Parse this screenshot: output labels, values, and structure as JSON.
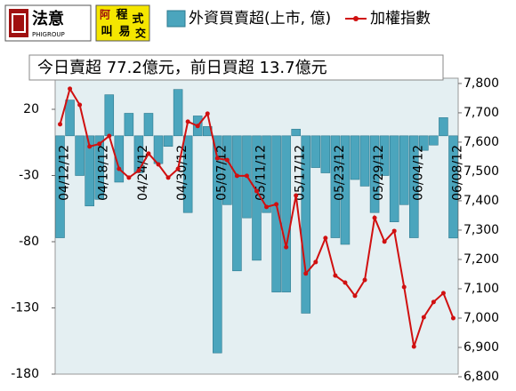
{
  "logos": {
    "brand": "法意",
    "brand_sub": "PHIGROUP",
    "second": [
      "阿",
      "程",
      "式",
      "叫",
      "易",
      "交"
    ]
  },
  "chart_data": {
    "type": "bar_line",
    "subtitle": "今日賣超 77.2億元，前日買超 13.7億元",
    "categories": [
      "04/12/12",
      null,
      null,
      null,
      "04/18/12",
      null,
      null,
      null,
      "04/24/12",
      null,
      null,
      null,
      "04/30/12",
      null,
      null,
      null,
      "05/07/12",
      null,
      null,
      null,
      "05/11/12",
      null,
      null,
      null,
      "05/17/12",
      null,
      null,
      null,
      "05/23/12",
      null,
      null,
      null,
      "05/29/12",
      null,
      null,
      null,
      "06/04/12",
      null,
      null,
      null,
      "06/08/12"
    ],
    "series": [
      {
        "name": "外資買賣超(上市, 億)",
        "type": "bar",
        "color": "#4ba5bd",
        "values": [
          -77,
          27,
          -30,
          -53,
          -48,
          31,
          -35,
          17,
          -28,
          17,
          -21,
          -8,
          35,
          -58,
          15,
          7,
          -164,
          -52,
          -102,
          -62,
          -94,
          -58,
          -118,
          -118,
          5,
          -134,
          -24,
          -28,
          -77,
          -82,
          -33,
          -38,
          -58,
          -30,
          -65,
          -52,
          -77,
          -11,
          -7,
          13.7,
          -77.2
        ]
      },
      {
        "name": "加權指數",
        "type": "line",
        "axis": "y2",
        "color": "#d01010",
        "values": [
          7661,
          7782,
          7727,
          7585,
          7594,
          7621,
          7509,
          7479,
          7503,
          7561,
          7524,
          7479,
          7509,
          7670,
          7655,
          7697,
          7545,
          7539,
          7485,
          7485,
          7433,
          7379,
          7388,
          7242,
          7418,
          7152,
          7191,
          7273,
          7145,
          7121,
          7076,
          7130,
          7342,
          7261,
          7297,
          7106,
          6903,
          7003,
          7055,
          7085,
          7000
        ]
      }
    ],
    "ylim": [
      -180,
      43.5
    ],
    "yticks": [
      20,
      -30,
      -80,
      -130,
      -180
    ],
    "y2lim": [
      6809,
      7818
    ],
    "y2ticks": [
      {
        "value": 6800,
        "label": "6,800"
      },
      {
        "value": 6900,
        "label": "6,900"
      },
      {
        "value": 7000,
        "label": "7,000"
      },
      {
        "value": 7100,
        "label": "7,100"
      },
      {
        "value": 7200,
        "label": "7,200"
      },
      {
        "value": 7300,
        "label": "7,300"
      },
      {
        "value": 7400,
        "label": "7,400"
      },
      {
        "value": 7500,
        "label": "7,500"
      },
      {
        "value": 7600,
        "label": "7,600"
      },
      {
        "value": 7700,
        "label": "7,700"
      },
      {
        "value": 7800,
        "label": "7,800"
      }
    ]
  }
}
